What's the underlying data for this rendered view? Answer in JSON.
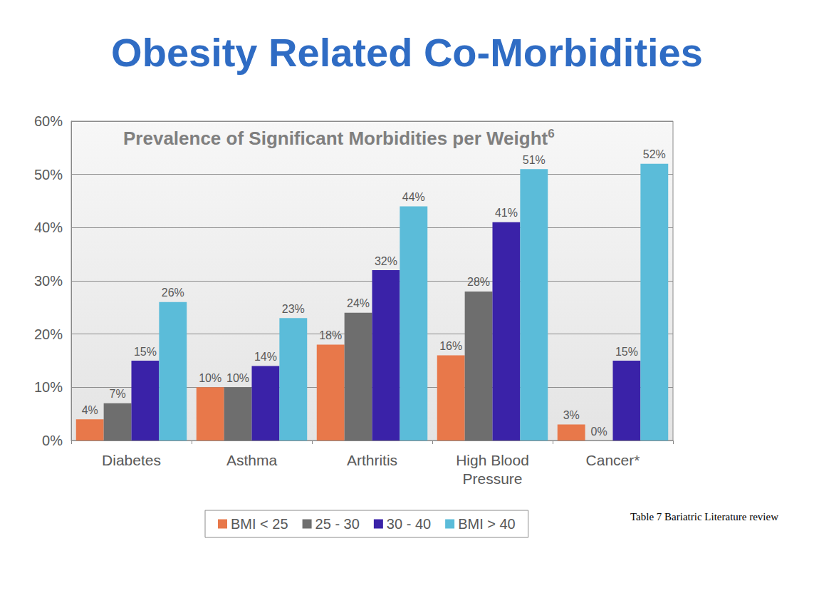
{
  "chart_data": {
    "type": "bar",
    "title": "Obesity Related Co-Morbidities",
    "subtitle": "Prevalence of Significant Morbidities per Weight",
    "annotations": [
      "6",
      "Table 7 Bariatric Literature review"
    ],
    "categories": [
      "Diabetes",
      "Asthma",
      "Arthritis",
      "High Blood\nPressure",
      "Cancer*"
    ],
    "series": [
      {
        "name": "BMI < 25",
        "color": "#e8784a",
        "values": [
          4,
          10,
          18,
          16,
          3
        ],
        "value_labels": [
          "4%",
          "10%",
          "18%",
          "16%",
          "3%"
        ]
      },
      {
        "name": "25 - 30",
        "color": "#6e6e6e",
        "values": [
          7,
          10,
          24,
          28,
          0
        ],
        "value_labels": [
          "7%",
          "10%",
          "24%",
          "28%",
          "0%"
        ]
      },
      {
        "name": "30 - 40",
        "color": "#3a22a8",
        "values": [
          15,
          14,
          32,
          41,
          15
        ],
        "value_labels": [
          "15%",
          "14%",
          "32%",
          "41%",
          "15%"
        ]
      },
      {
        "name": "BMI > 40",
        "color": "#5bbcd9",
        "values": [
          26,
          23,
          44,
          51,
          52
        ],
        "value_labels": [
          "26%",
          "23%",
          "44%",
          "51%",
          "52%"
        ]
      }
    ],
    "ylim": [
      0,
      60
    ],
    "yticks": [
      {
        "value": 0,
        "label": "0%"
      },
      {
        "value": 10,
        "label": "10%"
      },
      {
        "value": 20,
        "label": "20%"
      },
      {
        "value": 30,
        "label": "30%"
      },
      {
        "value": 40,
        "label": "40%"
      },
      {
        "value": 50,
        "label": "50%"
      },
      {
        "value": 60,
        "label": "60%"
      }
    ],
    "grid": true,
    "legend": "bottom",
    "data_labels": true
  }
}
